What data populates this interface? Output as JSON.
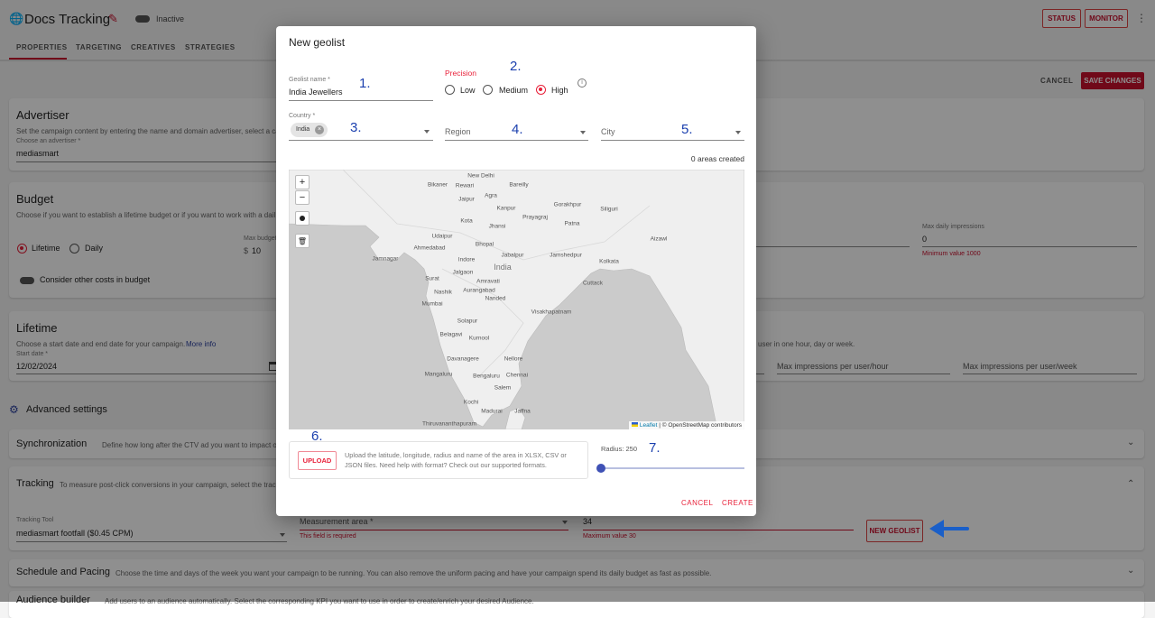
{
  "header": {
    "title": "Docs Tracking",
    "status_toggle": "Inactive",
    "status_btn": "STATUS",
    "monitor_btn": "MONITOR"
  },
  "tabs": [
    {
      "label": "PROPERTIES",
      "active": true
    },
    {
      "label": "TARGETING"
    },
    {
      "label": "CREATIVES"
    },
    {
      "label": "STRATEGIES"
    }
  ],
  "actions": {
    "cancel": "CANCEL",
    "save": "SAVE CHANGES"
  },
  "advertiser": {
    "title": "Advertiser",
    "desc": "Set the campaign content by entering the name and domain advertiser, select a ca",
    "label": "Choose an advertiser *",
    "value": "mediasmart"
  },
  "budget": {
    "title": "Budget",
    "desc": "Choose if you want to establish a lifetime budget or if you want to work with a dail",
    "opt_lifetime": "Lifetime",
    "opt_daily": "Daily",
    "selected": "Lifetime",
    "max_budget_label": "Max budget",
    "currency": "$",
    "max_budget": "10",
    "other_costs": "Consider other costs in budget",
    "max_daily_label": "Max daily impressions",
    "max_daily": "0",
    "max_daily_error": "Minimum value 1000"
  },
  "lifetime": {
    "title": "Lifetime",
    "desc": "Choose a start date and end date for your campaign.",
    "more_info": "More info",
    "start_label": "Start date *",
    "start": "12/02/2024",
    "freq_desc": "user in one hour, day or week.",
    "per_hour": "Max impressions per user/hour",
    "per_week": "Max impressions per user/week"
  },
  "advanced": {
    "title": "Advanced settings"
  },
  "sync": {
    "title": "Synchronization",
    "desc": "Define how long after the CTV ad you want to impact othe"
  },
  "tracking": {
    "title": "Tracking",
    "desc": "To measure post-click conversions in your campaign, select the track",
    "tool_label": "Tracking Tool",
    "tool": "mediasmart footfall ($0.45 CPM)",
    "area_placeholder": "Measurement area *",
    "area_error": "This field is required",
    "value": "34",
    "value_error": "Maximum value 30",
    "new_geolist": "NEW GEOLIST"
  },
  "schedule": {
    "title": "Schedule and Pacing",
    "desc": "Choose the time and days of the week you want your campaign to be running. You can also remove the uniform pacing and have your campaign spend its daily budget as fast as possible."
  },
  "audience": {
    "title": "Audience builder",
    "desc": "Add users to an audience automatically. Select the corresponding KPI you want to use in order to create/enrich your desired Audience."
  },
  "modal": {
    "title": "New geolist",
    "name_label": "Geolist name *",
    "name": "India Jewellers",
    "precision_label": "Precision",
    "precision_options": [
      "Low",
      "Medium",
      "High"
    ],
    "precision_selected": "High",
    "country_label": "Country *",
    "country_chip": "India",
    "region_placeholder": "Region",
    "city_placeholder": "City",
    "areas_created": "0 areas created",
    "map": {
      "cities": [
        "New Delhi",
        "Bikaner",
        "Rewari",
        "Bareilly",
        "Jaipur",
        "Agra",
        "Kanpur",
        "Gorakhpur",
        "Siliguri",
        "Prayagraj",
        "Patna",
        "Kota",
        "Jhansi",
        "Udaipur",
        "Ahmedabad",
        "Bhopal",
        "Jabalpur",
        "Jamshedpur",
        "Kolkata",
        "Aizawl",
        "Jamnagar",
        "Indore",
        "India",
        "Jalgaon",
        "Surat",
        "Amravati",
        "Cuttack",
        "Nashik",
        "Aurangabad",
        "Nanded",
        "Mumbai",
        "Visakhapatnam",
        "Solapur",
        "Belagavi",
        "Kurnool",
        "Davanagere",
        "Nellore",
        "Mangaluru",
        "Bengaluru",
        "Chennai",
        "Salem",
        "Kochi",
        "Madurai",
        "Jaffna",
        "Thiruvananthapuram"
      ],
      "zoom_in": "+",
      "zoom_out": "−",
      "attribution_leaflet": "Leaflet",
      "attribution_osm": "| © OpenStreetMap contributors"
    },
    "upload_btn": "UPLOAD",
    "upload_text": "Upload the latitude, longitude, radius and name of the area in XLSX, CSV or JSON files. Need help with format? Check out our supported formats.",
    "radius_label": "Radius: 250",
    "radius_fraction": 0,
    "cancel": "CANCEL",
    "create": "CREATE"
  },
  "annotations": [
    "1.",
    "2.",
    "3.",
    "4.",
    "5.",
    "6.",
    "7."
  ],
  "colors": {
    "accent": "#c8102e",
    "annotation": "#1a3fae",
    "slider": "#3f51b5"
  }
}
